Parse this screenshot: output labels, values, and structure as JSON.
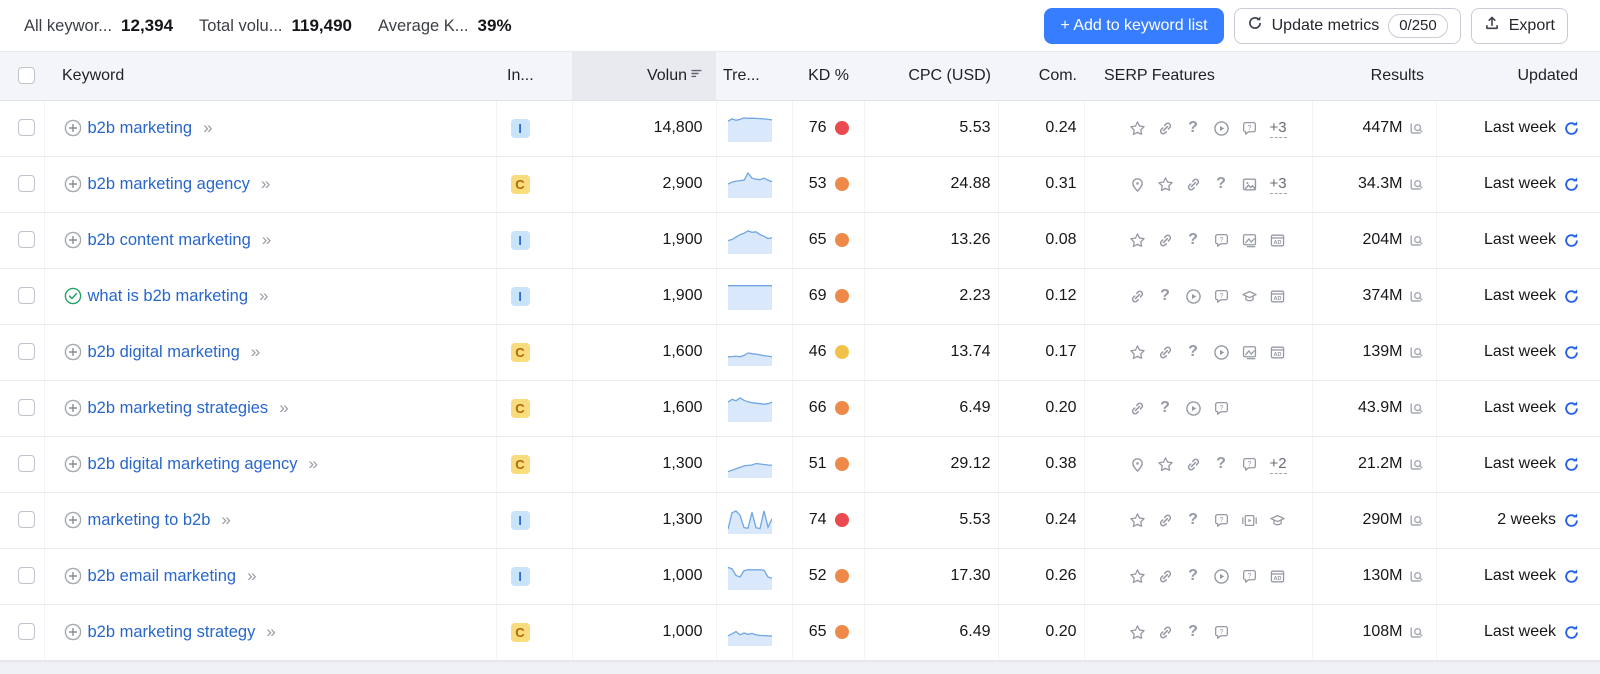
{
  "toolbar": {
    "stats": [
      {
        "label": "All keywor...",
        "value": "12,394"
      },
      {
        "label": "Total volu...",
        "value": "119,490"
      },
      {
        "label": "Average K...",
        "value": "39%"
      }
    ],
    "add_button_label": "+ Add to keyword list",
    "update_button_label": "Update metrics",
    "update_counter": "0/250",
    "export_button_label": "Export"
  },
  "table": {
    "columns": {
      "keyword": "Keyword",
      "intent": "In...",
      "volume": "Volun",
      "trend": "Tre...",
      "kd": "KD %",
      "cpc": "CPC (USD)",
      "com": "Com.",
      "serp": "SERP Features",
      "results": "Results",
      "updated": "Updated"
    },
    "rows": [
      {
        "keyword": "b2b marketing",
        "state": "add",
        "intent": "I",
        "volume": "14,800",
        "trend": [
          0.78,
          0.88,
          0.82,
          0.86,
          0.92,
          0.9,
          0.91,
          0.9,
          0.89,
          0.88,
          0.86,
          0.84
        ],
        "kd": "76",
        "kd_level": "red",
        "cpc": "5.53",
        "com": "0.24",
        "serp": [
          "star",
          "link",
          "question",
          "play",
          "faq"
        ],
        "serp_extra": "+3",
        "results": "447M",
        "updated": "Last week"
      },
      {
        "keyword": "b2b marketing agency",
        "state": "add",
        "intent": "C",
        "volume": "2,900",
        "trend": [
          0.5,
          0.58,
          0.62,
          0.64,
          0.66,
          0.96,
          0.74,
          0.7,
          0.68,
          0.74,
          0.66,
          0.6
        ],
        "kd": "53",
        "kd_level": "orange",
        "cpc": "24.88",
        "com": "0.31",
        "serp": [
          "pin",
          "star",
          "link",
          "question",
          "image"
        ],
        "serp_extra": "+3",
        "results": "34.3M",
        "updated": "Last week"
      },
      {
        "keyword": "b2b content marketing",
        "state": "add",
        "intent": "I",
        "volume": "1,900",
        "trend": [
          0.48,
          0.52,
          0.62,
          0.72,
          0.78,
          0.88,
          0.82,
          0.84,
          0.72,
          0.66,
          0.56,
          0.6
        ],
        "kd": "65",
        "kd_level": "orange",
        "cpc": "13.26",
        "com": "0.08",
        "serp": [
          "star",
          "link",
          "question",
          "faq",
          "image_alt",
          "ad"
        ],
        "serp_extra": "",
        "results": "204M",
        "updated": "Last week"
      },
      {
        "keyword": "what is b2b marketing",
        "state": "added",
        "intent": "I",
        "volume": "1,900",
        "trend": [
          0.93,
          0.93,
          0.93,
          0.93,
          0.93,
          0.93,
          0.93,
          0.93,
          0.93,
          0.93,
          0.93,
          0.93
        ],
        "kd": "69",
        "kd_level": "orange",
        "cpc": "2.23",
        "com": "0.12",
        "serp": [
          "link",
          "question",
          "play",
          "faq",
          "cap",
          "ad"
        ],
        "serp_extra": "",
        "results": "374M",
        "updated": "Last week"
      },
      {
        "keyword": "b2b digital marketing",
        "state": "add",
        "intent": "C",
        "volume": "1,600",
        "trend": [
          0.3,
          0.31,
          0.33,
          0.3,
          0.36,
          0.46,
          0.43,
          0.41,
          0.38,
          0.35,
          0.33,
          0.3
        ],
        "kd": "46",
        "kd_level": "yellow",
        "cpc": "13.74",
        "com": "0.17",
        "serp": [
          "star",
          "link",
          "question",
          "play",
          "image_alt",
          "ad"
        ],
        "serp_extra": "",
        "results": "139M",
        "updated": "Last week"
      },
      {
        "keyword": "b2b marketing strategies",
        "state": "add",
        "intent": "C",
        "volume": "1,600",
        "trend": [
          0.74,
          0.86,
          0.8,
          0.92,
          0.82,
          0.76,
          0.72,
          0.7,
          0.68,
          0.66,
          0.68,
          0.74
        ],
        "kd": "66",
        "kd_level": "orange",
        "cpc": "6.49",
        "com": "0.20",
        "serp": [
          "link",
          "question",
          "play",
          "faq"
        ],
        "serp_extra": "",
        "results": "43.9M",
        "updated": "Last week"
      },
      {
        "keyword": "b2b digital marketing agency",
        "state": "add",
        "intent": "C",
        "volume": "1,300",
        "trend": [
          0.18,
          0.24,
          0.3,
          0.36,
          0.42,
          0.44,
          0.46,
          0.52,
          0.5,
          0.48,
          0.46,
          0.44
        ],
        "kd": "51",
        "kd_level": "orange",
        "cpc": "29.12",
        "com": "0.38",
        "serp": [
          "pin",
          "star",
          "link",
          "question",
          "faq"
        ],
        "serp_extra": "+2",
        "results": "21.2M",
        "updated": "Last week"
      },
      {
        "keyword": "marketing to b2b",
        "state": "add",
        "intent": "I",
        "volume": "1,300",
        "trend": [
          0.12,
          0.8,
          0.88,
          0.7,
          0.18,
          0.16,
          0.82,
          0.18,
          0.14,
          0.88,
          0.2,
          0.55
        ],
        "kd": "74",
        "kd_level": "red",
        "cpc": "5.53",
        "com": "0.24",
        "serp": [
          "star",
          "link",
          "question",
          "faq",
          "carousel",
          "cap"
        ],
        "serp_extra": "",
        "results": "290M",
        "updated": "2 weeks"
      },
      {
        "keyword": "b2b email marketing",
        "state": "add",
        "intent": "I",
        "volume": "1,000",
        "trend": [
          0.86,
          0.8,
          0.52,
          0.46,
          0.72,
          0.76,
          0.76,
          0.76,
          0.76,
          0.74,
          0.46,
          0.4
        ],
        "kd": "52",
        "kd_level": "orange",
        "cpc": "17.30",
        "com": "0.26",
        "serp": [
          "star",
          "link",
          "question",
          "play",
          "faq",
          "ad"
        ],
        "serp_extra": "",
        "results": "130M",
        "updated": "Last week"
      },
      {
        "keyword": "b2b marketing strategy",
        "state": "add",
        "intent": "C",
        "volume": "1,000",
        "trend": [
          0.34,
          0.42,
          0.52,
          0.38,
          0.46,
          0.4,
          0.44,
          0.38,
          0.36,
          0.35,
          0.34,
          0.33
        ],
        "kd": "65",
        "kd_level": "orange",
        "cpc": "6.49",
        "com": "0.20",
        "serp": [
          "star",
          "link",
          "question",
          "faq"
        ],
        "serp_extra": "",
        "results": "108M",
        "updated": "Last week"
      }
    ]
  },
  "colors": {
    "accent_blue": "#377DFF",
    "link_blue": "#2767CC",
    "kd_red": "#E9494F",
    "kd_orange": "#EE8A49",
    "kd_yellow": "#F2C14A",
    "intent_i_bg": "#C9E3FB",
    "intent_i_text": "#2E6FD8",
    "intent_c_bg": "#F9DC7E",
    "intent_c_text": "#B06A08",
    "sparkline_line": "#70A6E4",
    "sparkline_fill": "#D9E9FB",
    "refresh_blue": "#2563EB",
    "icon_gray": "#9599A4",
    "added_green": "#23A566"
  }
}
